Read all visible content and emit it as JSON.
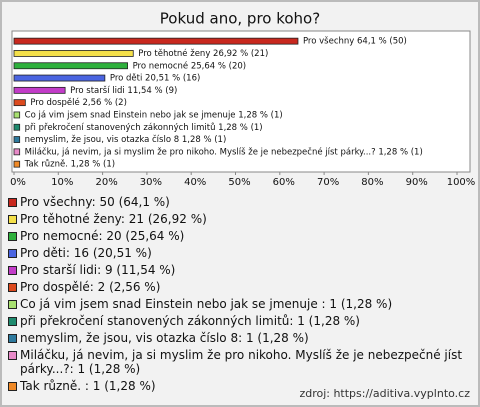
{
  "chart_data": {
    "type": "hbar",
    "title": "Pokud ano, pro koho?",
    "categories": [
      "Pro všechny: 50 (64,1 %)",
      "Pro těhotné ženy: 21 (26,92 %)",
      "Pro nemocné: 20 (25,64 %)",
      "Pro děti: 16 (20,51 %)",
      "Pro starší lidi: 9 (11,54 %)",
      "Pro dospělé: 2 (2,56 %)",
      "Co já vim jsem snad Einstein nebo jak se jmenuje : 1 (1,28 %)",
      "při překročení stanovených zákonných limitů: 1 (1,28 %)",
      "nemyslim, že jsou, vis otazka číslo 8: 1 (1,28 %)",
      "Miláčku, já nevim, ja si myslim že pro nikoho. Myslíš že je nebezpečné jíst párky...?: 1 (1,28 %)",
      "Tak různě. : 1 (1,28 %)"
    ],
    "values": [
      64.1,
      26.92,
      25.64,
      20.51,
      11.54,
      2.56,
      1.28,
      1.28,
      1.28,
      1.28,
      1.28
    ],
    "value_labels": [
      "Pro všechny 64,1 % (50)",
      "Pro těhotné ženy 26,92 % (21)",
      "Pro nemocné 25,64 % (20)",
      "Pro děti 20,51 % (16)",
      "Pro starší lidi 11,54 % (9)",
      "Pro dospělé 2,56 % (2)",
      "Co já vim jsem snad Einstein nebo jak se jmenuje  1,28 % (1)",
      "při překročení stanovených zákonných limitů 1,28 % (1)",
      "nemyslim, že jsou, vis otazka číslo 8 1,28 % (1)",
      "Miláčku, já nevim, ja si myslim že pro nikoho. Myslíš že je nebezpečné jíst párky...? 1,28 % (1)",
      "Tak různě.  1,28 % (1)"
    ],
    "colors": [
      "#c8281e",
      "#f4e04a",
      "#2eb03c",
      "#4a64e0",
      "#c23cc8",
      "#dc4a1e",
      "#a8e070",
      "#1e8a6e",
      "#2e7a9e",
      "#e88ac8",
      "#f08a28"
    ],
    "xlim": [
      0,
      100
    ],
    "xticks": [
      {
        "value": 0,
        "label": "0%"
      },
      {
        "value": 10,
        "label": "10%"
      },
      {
        "value": 20,
        "label": "20%"
      },
      {
        "value": 30,
        "label": "30%"
      },
      {
        "value": 40,
        "label": "40%"
      },
      {
        "value": 50,
        "label": "50%"
      },
      {
        "value": 60,
        "label": "60%"
      },
      {
        "value": 70,
        "label": "70%"
      },
      {
        "value": 80,
        "label": "80%"
      },
      {
        "value": 90,
        "label": "90%"
      },
      {
        "value": 100,
        "label": "100%"
      }
    ],
    "source": "zdroj: https://aditiva.vyplnto.cz"
  }
}
